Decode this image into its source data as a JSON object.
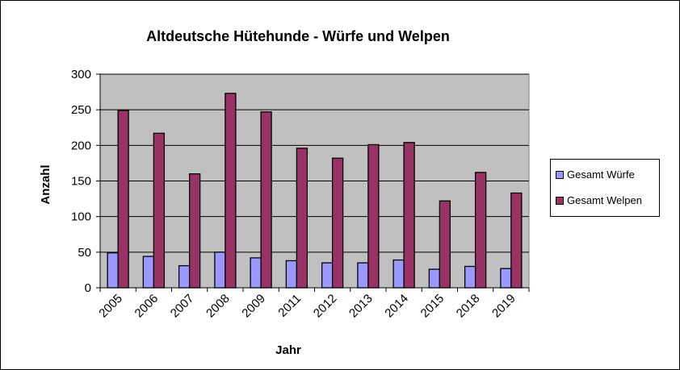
{
  "chart_data": {
    "type": "bar",
    "title": "Altdeutsche Hütehunde - Würfe und Welpen",
    "xlabel": "Jahr",
    "ylabel": "Anzahl",
    "ylim": [
      0,
      300
    ],
    "yticks": [
      0,
      50,
      100,
      150,
      200,
      250,
      300
    ],
    "grid": true,
    "legend_position": "right",
    "plot_background": "#C0C0C0",
    "categories": [
      "2005",
      "2006",
      "2007",
      "2008",
      "2009",
      "2011",
      "2012",
      "2013",
      "2014",
      "2015",
      "2018",
      "2019"
    ],
    "series": [
      {
        "name": "Gesamt Würfe",
        "color": "#9999FF",
        "values": [
          49,
          44,
          31,
          50,
          42,
          38,
          35,
          35,
          39,
          26,
          30,
          27
        ]
      },
      {
        "name": "Gesamt Welpen",
        "color": "#993366",
        "values": [
          249,
          217,
          160,
          273,
          247,
          196,
          182,
          201,
          204,
          122,
          162,
          133
        ]
      }
    ]
  }
}
